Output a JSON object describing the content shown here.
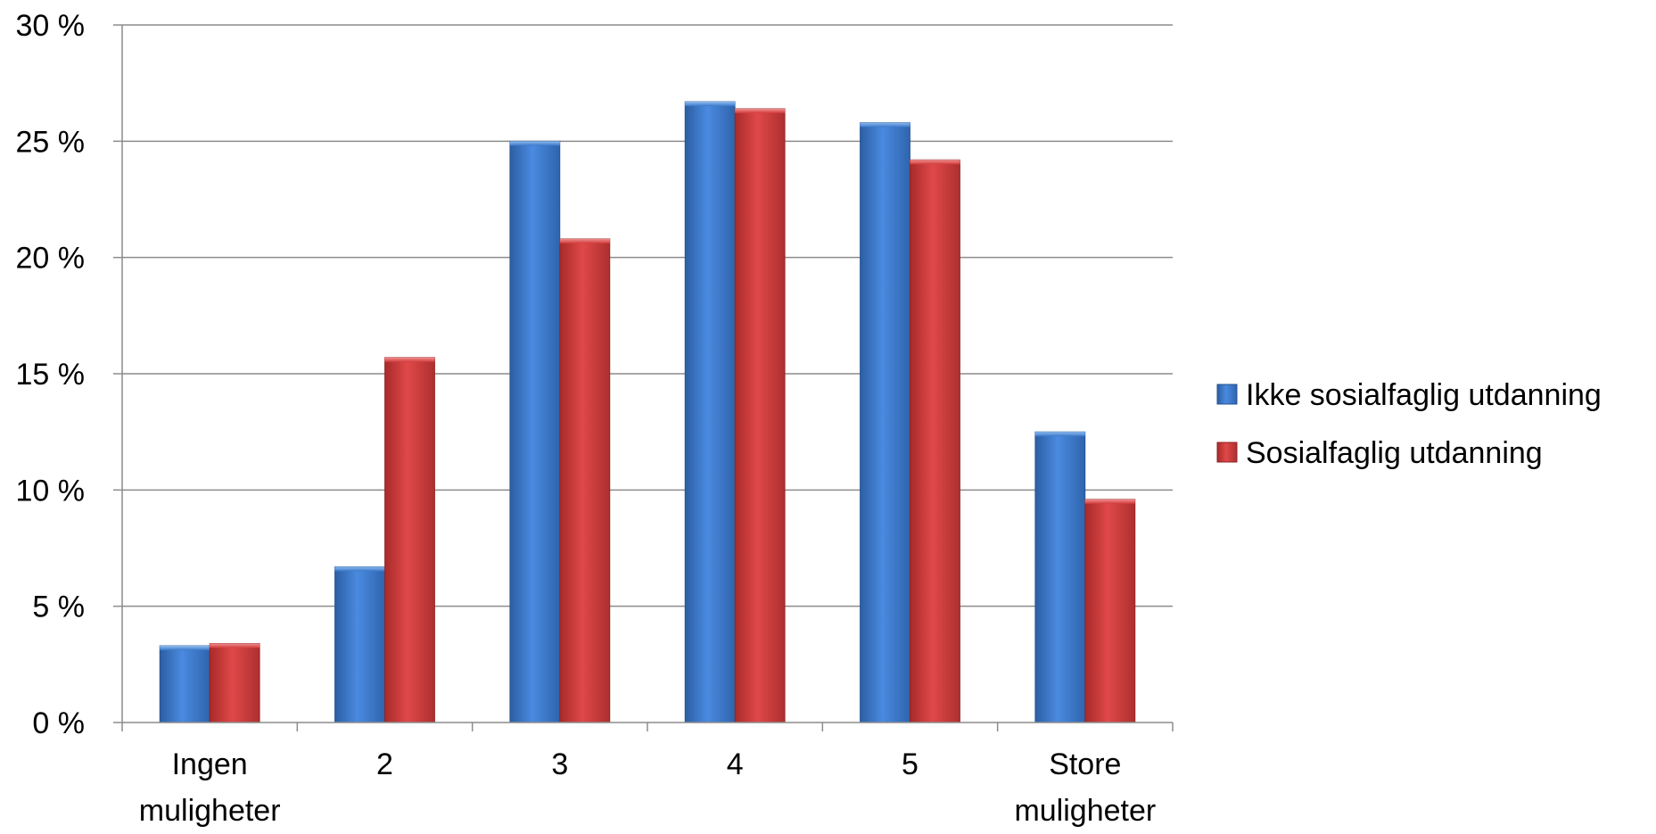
{
  "chart_data": {
    "type": "bar",
    "title": "",
    "xlabel": "",
    "ylabel": "",
    "categories": [
      [
        "Ingen",
        "muligheter"
      ],
      [
        "2"
      ],
      [
        "3"
      ],
      [
        "4"
      ],
      [
        "5"
      ],
      [
        "Store",
        "muligheter"
      ]
    ],
    "series": [
      {
        "name": "Ikke sosialfaglig utdanning",
        "color": "#3a78c9",
        "values": [
          3.3,
          6.7,
          25.0,
          26.7,
          25.8,
          12.5
        ]
      },
      {
        "name": "Sosialfaglig utdanning",
        "color": "#d23c3c",
        "values": [
          3.4,
          15.7,
          20.8,
          26.4,
          24.2,
          9.6
        ]
      }
    ],
    "ylim": [
      0,
      30
    ],
    "yticks": [
      0,
      5,
      10,
      15,
      20,
      25,
      30
    ],
    "ytick_labels": [
      "0 %",
      "5 %",
      "10 %",
      "15 %",
      "20 %",
      "25 %",
      "30 %"
    ],
    "grid": true,
    "legend_position": "right"
  }
}
